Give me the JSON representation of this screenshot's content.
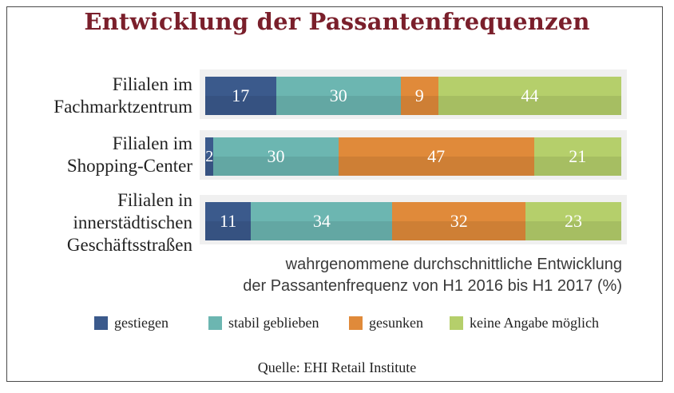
{
  "chart_data": {
    "type": "bar",
    "orientation": "horizontal",
    "stacked": true,
    "title": "Entwicklung der Passantenfrequenzen",
    "categories": [
      "Filialen im\nFachmarktzentrum",
      "Filialen im\nShopping-Center",
      "Filialen in\ninnerstädtischen\nGeschäftsstraßen"
    ],
    "series": [
      {
        "name": "gestiegen",
        "values": [
          17,
          2,
          11
        ],
        "color": "#3b5a8c"
      },
      {
        "name": "stabil geblieben",
        "values": [
          30,
          30,
          34
        ],
        "color": "#6cb6b1"
      },
      {
        "name": "gesunken",
        "values": [
          9,
          47,
          32
        ],
        "color": "#e08a3a"
      },
      {
        "name": "keine Angabe möglich",
        "values": [
          44,
          21,
          23
        ],
        "color": "#b5cf6b"
      }
    ],
    "xlabel": "wahrgenommene durchschnittliche Entwicklung\nder Passantenfrequenz von H1 2016 bis H1 2017 (%)",
    "xlim": [
      0,
      100
    ],
    "legend_position": "bottom",
    "grid": false,
    "source": "Quelle: EHI Retail Institute"
  }
}
